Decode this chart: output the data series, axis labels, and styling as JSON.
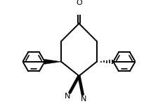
{
  "background_color": "#ffffff",
  "line_color": "#000000",
  "line_width": 1.4,
  "figsize": [
    2.25,
    1.58
  ],
  "dpi": 100,
  "xlim": [
    -3.2,
    3.2
  ],
  "ylim": [
    -2.8,
    2.6
  ]
}
